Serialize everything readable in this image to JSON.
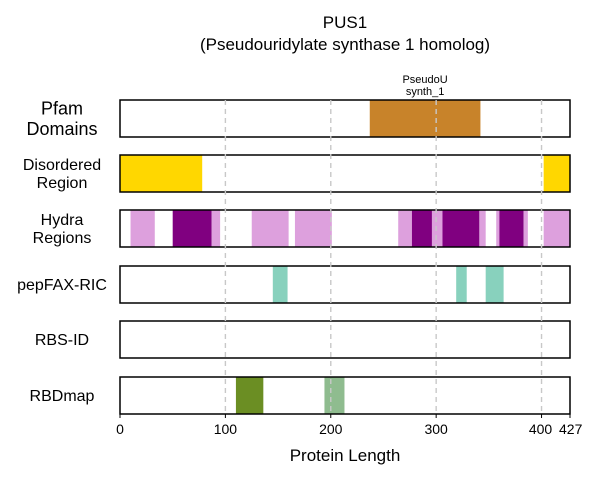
{
  "chart_data": {
    "type": "track",
    "title": "PUS1",
    "subtitle": "(Pseudouridylate synthase 1 homolog)",
    "xlabel": "Protein Length",
    "xlim": [
      0,
      427
    ],
    "xticks": [
      0,
      100,
      200,
      300,
      400,
      427
    ],
    "vgrid_at": [
      100,
      200,
      300,
      400
    ],
    "tracks": [
      {
        "label_lines": [
          "Pfam",
          "Domains"
        ],
        "segments": [
          {
            "start": 237,
            "end": 342,
            "color": "#C8832A",
            "label_lines": [
              "PseudoU",
              "synth_1"
            ]
          }
        ]
      },
      {
        "label_lines": [
          "Disordered",
          "Region"
        ],
        "segments": [
          {
            "start": 0,
            "end": 78,
            "color": "#FFD700"
          },
          {
            "start": 402,
            "end": 427,
            "color": "#FFD700"
          }
        ]
      },
      {
        "label_lines": [
          "Hydra",
          "Regions"
        ],
        "segments": [
          {
            "start": 10,
            "end": 33,
            "color": "#DDA0DD"
          },
          {
            "start": 50,
            "end": 87,
            "color": "#800080"
          },
          {
            "start": 87,
            "end": 95,
            "color": "#DDA0DD"
          },
          {
            "start": 125,
            "end": 160,
            "color": "#DDA0DD"
          },
          {
            "start": 166,
            "end": 201,
            "color": "#DDA0DD"
          },
          {
            "start": 264,
            "end": 277,
            "color": "#DDA0DD"
          },
          {
            "start": 277,
            "end": 296,
            "color": "#800080"
          },
          {
            "start": 296,
            "end": 306,
            "color": "#DDA0DD"
          },
          {
            "start": 306,
            "end": 341,
            "color": "#800080"
          },
          {
            "start": 341,
            "end": 347,
            "color": "#DDA0DD"
          },
          {
            "start": 357,
            "end": 360,
            "color": "#DDA0DD"
          },
          {
            "start": 360,
            "end": 383,
            "color": "#800080"
          },
          {
            "start": 383,
            "end": 387,
            "color": "#DDA0DD"
          },
          {
            "start": 402,
            "end": 427,
            "color": "#DDA0DD"
          }
        ]
      },
      {
        "label_lines": [
          "pepFAX-RIC"
        ],
        "segments": [
          {
            "start": 145,
            "end": 159,
            "color": "#88D1BD"
          },
          {
            "start": 319,
            "end": 329,
            "color": "#88D1BD"
          },
          {
            "start": 347,
            "end": 364,
            "color": "#88D1BD"
          }
        ]
      },
      {
        "label_lines": [
          "RBS-ID"
        ],
        "segments": []
      },
      {
        "label_lines": [
          "RBDmap"
        ],
        "segments": [
          {
            "start": 110,
            "end": 136,
            "color": "#6B8E23"
          },
          {
            "start": 194,
            "end": 213,
            "color": "#8FBC8F"
          }
        ]
      }
    ]
  }
}
